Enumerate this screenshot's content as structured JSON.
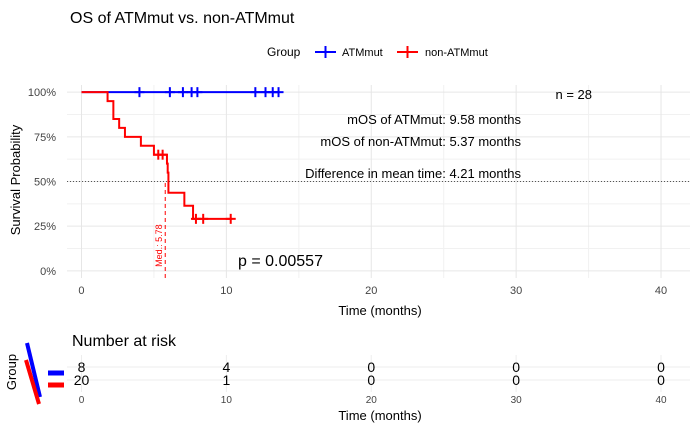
{
  "chart_data": {
    "type": "line",
    "title": "OS of ATMmut vs. non-ATMmut",
    "legend": {
      "title": "Group",
      "placement": "top",
      "entries": [
        {
          "name": "ATMmut",
          "color": "#0000ff"
        },
        {
          "name": "non-ATMmut",
          "color": "#ff0000"
        }
      ]
    },
    "xlabel": "Time (months)",
    "ylabel": "Survival Probability",
    "xlim": [
      -1,
      42
    ],
    "ylim": [
      -0.04,
      1.04
    ],
    "xticks": [
      0,
      10,
      20,
      30,
      40
    ],
    "yticks": [
      {
        "value": 0,
        "label": "0%"
      },
      {
        "value": 0.25,
        "label": "25%"
      },
      {
        "value": 0.5,
        "label": "50%"
      },
      {
        "value": 0.75,
        "label": "75%"
      },
      {
        "value": 1,
        "label": "100%"
      }
    ],
    "grid": true,
    "reference_line": {
      "y": 0.5,
      "style": "dotted"
    },
    "series": [
      {
        "name": "ATMmut",
        "color": "#0000ff",
        "step": [
          [
            0,
            1.0
          ],
          [
            13.6,
            1.0
          ]
        ],
        "censor": [
          [
            4.0,
            1.0
          ],
          [
            6.1,
            1.0
          ],
          [
            7.0,
            1.0
          ],
          [
            7.6,
            1.0
          ],
          [
            8.0,
            1.0
          ],
          [
            12.0,
            1.0
          ],
          [
            12.7,
            1.0
          ],
          [
            13.2,
            1.0
          ],
          [
            13.6,
            1.0
          ]
        ]
      },
      {
        "name": "non-ATMmut",
        "color": "#ff0000",
        "step": [
          [
            0,
            1.0
          ],
          [
            1.8,
            0.95
          ],
          [
            2.2,
            0.85
          ],
          [
            2.6,
            0.8
          ],
          [
            3.0,
            0.75
          ],
          [
            4.1,
            0.7
          ],
          [
            5.0,
            0.65
          ],
          [
            5.9,
            0.6
          ],
          [
            5.95,
            0.55
          ],
          [
            6.0,
            0.45
          ],
          [
            6.0,
            0.437
          ],
          [
            7.1,
            0.364
          ],
          [
            7.7,
            0.291
          ],
          [
            10.4,
            0.291
          ]
        ],
        "censor": [
          [
            5.3,
            0.65
          ],
          [
            5.6,
            0.65
          ],
          [
            7.9,
            0.291
          ],
          [
            8.4,
            0.291
          ],
          [
            10.3,
            0.291
          ]
        ]
      }
    ],
    "median_line": {
      "x": 5.78,
      "label": "Med.: 5.78"
    },
    "annotations": [
      {
        "id": "n",
        "text": "n = 28"
      },
      {
        "id": "mos_atm",
        "text": "mOS of ATMmut: 9.58 months"
      },
      {
        "id": "mos_non",
        "text": "mOS of non-ATMmut: 5.37 months"
      },
      {
        "id": "diff",
        "text": "Difference in mean time: 4.21 months"
      },
      {
        "id": "pval",
        "text": "p = 0.00557"
      }
    ],
    "risk_table": {
      "title": "Number at risk",
      "ylabel": "Group",
      "xlabel": "Time (months)",
      "times": [
        0,
        10,
        20,
        30,
        40
      ],
      "rows": [
        {
          "name": "ATMmut",
          "color": "#0000ff",
          "values": [
            8,
            4,
            0,
            0,
            0
          ]
        },
        {
          "name": "non-ATMmut",
          "color": "#ff0000",
          "values": [
            20,
            1,
            0,
            0,
            0
          ]
        }
      ]
    }
  }
}
